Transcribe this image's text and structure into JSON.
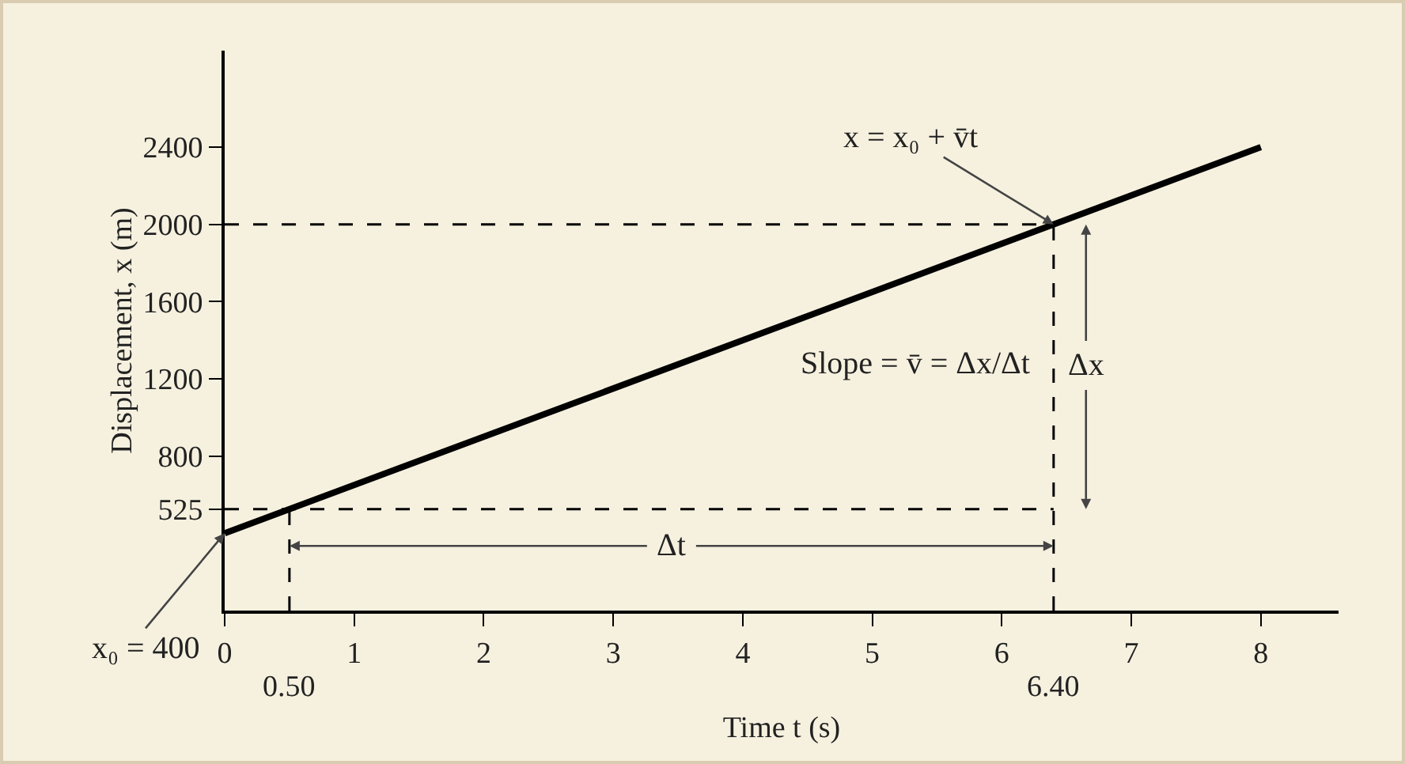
{
  "chart_data": {
    "type": "line",
    "xlabel": "Time t (s)",
    "ylabel": "Displacement, x (m)",
    "x": [
      0,
      8
    ],
    "series": [
      {
        "color": "#000000",
        "values": [
          400,
          2400
        ]
      }
    ],
    "xlim": [
      0,
      8.6
    ],
    "xticks": [
      0,
      1,
      2,
      3,
      4,
      5,
      6,
      7,
      8
    ],
    "ylim": [
      0,
      2900
    ],
    "yticks": [
      525,
      800,
      1200,
      1600,
      2000,
      2400
    ],
    "grid": false,
    "marker": "none",
    "line_style": "solid",
    "ref_lines": [
      {
        "axis": "y",
        "value": 2000,
        "line_style": "dashed"
      },
      {
        "axis": "y",
        "value": 525,
        "line_style": "dashed"
      },
      {
        "axis": "x",
        "value": 0.5,
        "label": "0.50",
        "line_style": "dashed"
      },
      {
        "axis": "x",
        "value": 6.4,
        "label": "6.40",
        "line_style": "dashed"
      }
    ],
    "annotations": [
      {
        "text": "x = x₀ + v̄t",
        "x": 6.4,
        "y": 2000
      },
      {
        "text": "x₀ = 400",
        "x": 0,
        "y": 400
      },
      "Slope = v̄ = Δx/Δt",
      {
        "text": "Δt",
        "x": 3.45,
        "y": 335
      },
      {
        "text": "Δx",
        "x": 6.65,
        "y": 1270
      }
    ]
  }
}
